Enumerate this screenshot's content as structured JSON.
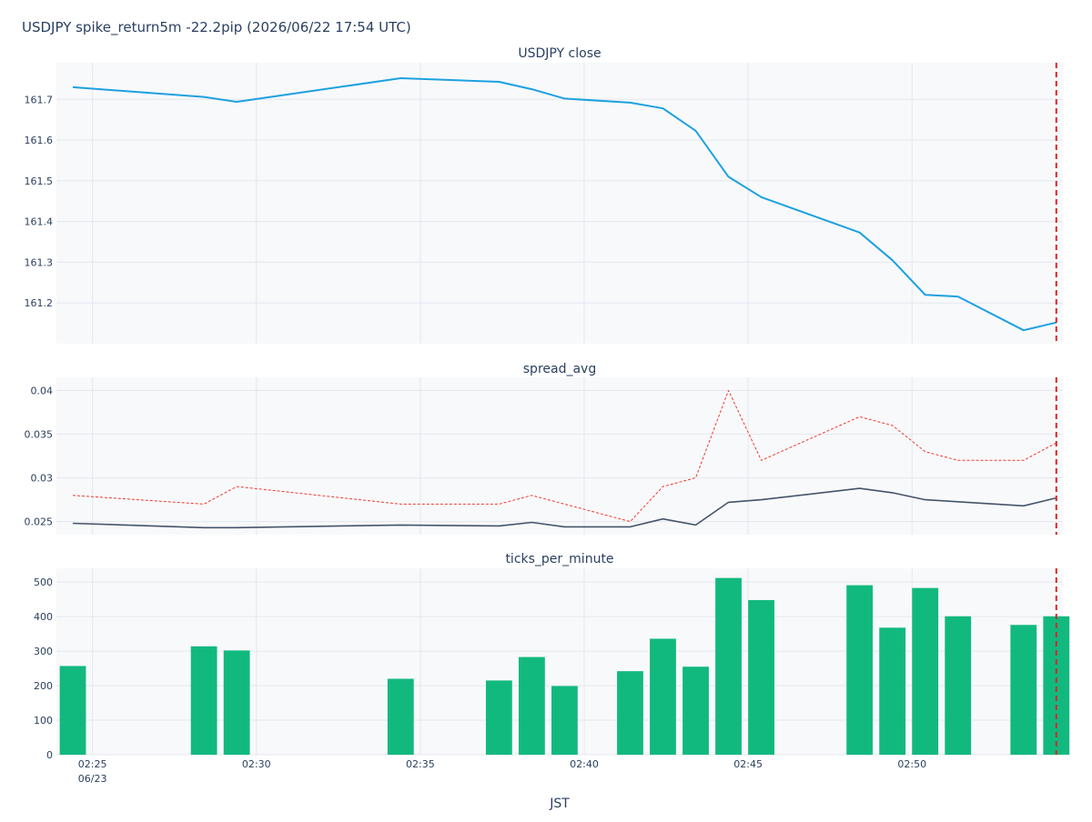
{
  "title": "USDJPY spike_return5m -22.2pip (2026/06/22 17:54 UTC)",
  "xlabel": "JST",
  "x_ticks": [
    {
      "minute": 25,
      "label": "02:25",
      "sublabel": "06/23"
    },
    {
      "minute": 30,
      "label": "02:30",
      "sublabel": ""
    },
    {
      "minute": 35,
      "label": "02:35",
      "sublabel": ""
    },
    {
      "minute": 40,
      "label": "02:40",
      "sublabel": ""
    },
    {
      "minute": 45,
      "label": "02:45",
      "sublabel": ""
    },
    {
      "minute": 50,
      "label": "02:50",
      "sublabel": ""
    }
  ],
  "x_range_minutes": [
    23.9,
    54.6
  ],
  "event_minute": 54.4,
  "colors": {
    "close": "#1da1e0",
    "spread_mean": "#44546a",
    "spread_max": "#ef3b2c",
    "ticks": "#12b97f",
    "event_line": "#d62728",
    "plot_bg": "#f8f9fb",
    "grid": "#e4e8ef"
  },
  "chart_data": [
    {
      "type": "line",
      "subplot_title": "USDJPY close",
      "ylim": [
        161.1,
        161.79
      ],
      "y_ticks": [
        161.2,
        161.3,
        161.4,
        161.5,
        161.6,
        161.7
      ],
      "series": [
        {
          "key": "close",
          "x": [
            24.4,
            28.4,
            29.4,
            34.4,
            37.4,
            38.4,
            39.4,
            41.4,
            42.4,
            43.4,
            44.4,
            45.4,
            48.4,
            49.4,
            50.4,
            51.4,
            53.4,
            54.4
          ],
          "values": [
            161.73,
            161.706,
            161.694,
            161.752,
            161.743,
            161.725,
            161.702,
            161.692,
            161.678,
            161.623,
            161.51,
            161.46,
            161.373,
            161.305,
            161.22,
            161.216,
            161.133,
            161.152
          ]
        }
      ]
    },
    {
      "type": "line",
      "subplot_title": "spread_avg",
      "ylim": [
        0.0235,
        0.0415
      ],
      "y_ticks": [
        0.025,
        0.03,
        0.035,
        0.04
      ],
      "series": [
        {
          "key": "spread_mean",
          "dash": "solid",
          "x": [
            24.4,
            28.4,
            29.4,
            34.4,
            37.4,
            38.4,
            39.4,
            41.4,
            42.4,
            43.4,
            44.4,
            45.4,
            48.4,
            49.4,
            50.4,
            53.4,
            54.4
          ],
          "values": [
            0.0248,
            0.0243,
            0.0243,
            0.0246,
            0.0245,
            0.0249,
            0.0244,
            0.0244,
            0.0253,
            0.0246,
            0.0272,
            0.0275,
            0.0288,
            0.0283,
            0.0275,
            0.0268,
            0.0277
          ]
        },
        {
          "key": "spread_max",
          "dash": "dot",
          "x": [
            24.4,
            28.4,
            29.4,
            34.4,
            37.4,
            38.4,
            39.4,
            41.4,
            42.4,
            43.4,
            44.4,
            45.4,
            48.4,
            49.4,
            50.4,
            51.4,
            53.4,
            54.4
          ],
          "values": [
            0.028,
            0.027,
            0.029,
            0.027,
            0.027,
            0.028,
            0.027,
            0.025,
            0.029,
            0.03,
            0.04,
            0.032,
            0.037,
            0.036,
            0.033,
            0.032,
            0.032,
            0.034
          ]
        }
      ]
    },
    {
      "type": "bar",
      "subplot_title": "ticks_per_minute",
      "ylim": [
        0,
        540
      ],
      "y_ticks": [
        0,
        100,
        200,
        300,
        400,
        500
      ],
      "series": [
        {
          "key": "ticks",
          "x": [
            24.4,
            28.4,
            29.4,
            34.4,
            37.4,
            38.4,
            39.4,
            41.4,
            42.4,
            43.4,
            44.4,
            45.4,
            48.4,
            49.4,
            50.4,
            51.4,
            53.4,
            54.4
          ],
          "values": [
            257,
            314,
            302,
            220,
            215,
            283,
            199,
            242,
            336,
            255,
            512,
            448,
            491,
            368,
            483,
            401,
            376,
            401
          ]
        }
      ]
    }
  ]
}
